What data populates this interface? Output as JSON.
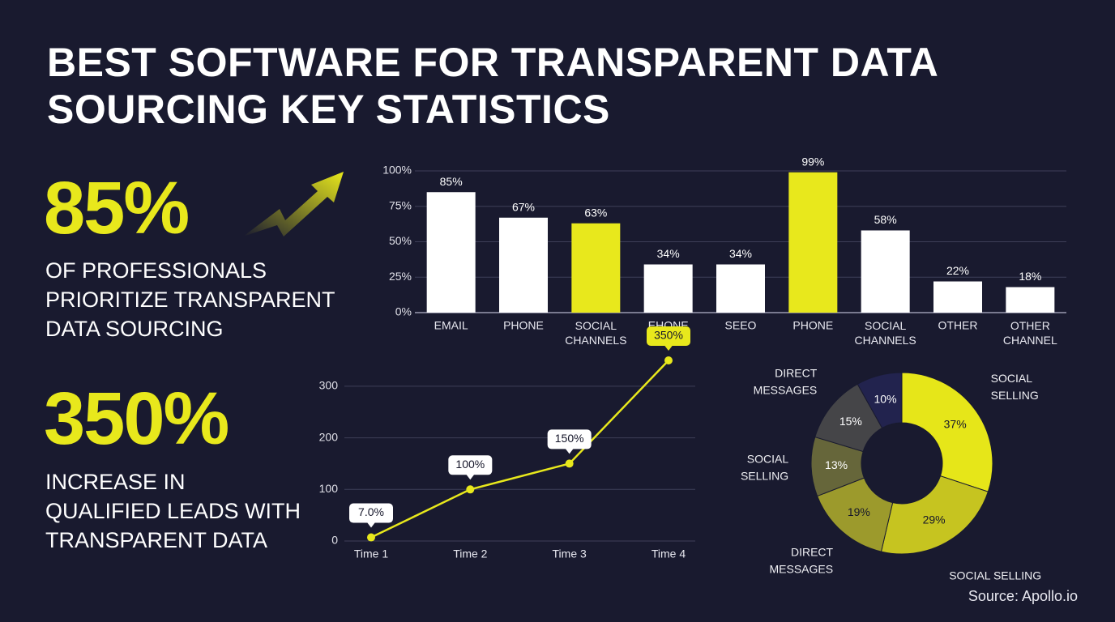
{
  "header": {
    "title": "BEST SOFTWARE FOR TRANSPARENT DATA\nSOURCING KEY STATISTICS"
  },
  "stats": [
    {
      "value": "85%",
      "text": "OF PROFESSIONALS\nPRIORITIZE TRANSPARENT\nDATA SOURCING"
    },
    {
      "value": "350%",
      "text": "INCREASE IN\nQUALIFIED LEADS WITH\nTRANSPARENT DATA"
    }
  ],
  "source": "Source: Apollo.io",
  "chart_data": [
    {
      "type": "bar",
      "categories": [
        "EMAIL",
        "PHONE",
        "SOCIAL\nCHANNELS",
        "EHONE",
        "SEEO",
        "PHONE",
        "SOCIAL\nCHANNELS",
        "OTHER",
        "OTHER\nCHANNEL"
      ],
      "values": [
        85,
        67,
        63,
        34,
        34,
        99,
        58,
        22,
        18
      ],
      "value_labels": [
        "85%",
        "67%",
        "63%",
        "34%",
        "34%",
        "99%",
        "58%",
        "22%",
        "18%"
      ],
      "colors": [
        "#ffffff",
        "#ffffff",
        "#e8e81c",
        "#ffffff",
        "#ffffff",
        "#e8e81c",
        "#ffffff",
        "#ffffff",
        "#ffffff"
      ],
      "ylim": [
        0,
        100
      ],
      "yticks": [
        {
          "value": 0,
          "label": "0%"
        },
        {
          "value": 25,
          "label": "25%"
        },
        {
          "value": 50,
          "label": "50%"
        },
        {
          "value": 75,
          "label": "75%"
        },
        {
          "value": 100,
          "label": "100%"
        }
      ],
      "grid": true
    },
    {
      "type": "line",
      "categories": [
        "Time 1",
        "Time 2",
        "Time 3",
        "Time 4"
      ],
      "values": [
        7,
        100,
        150,
        350
      ],
      "value_labels": [
        "7.0%",
        "100%",
        "150%",
        "350%"
      ],
      "color": "#e8e81c",
      "ylim": [
        0,
        350
      ],
      "yticks": [
        0,
        100,
        200,
        300
      ],
      "grid": true
    },
    {
      "type": "pie",
      "categories": [
        "SOCIAL\nSELLING",
        "SOCIAL SELLING",
        "DIRECT\nMESSAGES",
        "SOCIAL\nSELLING",
        "DIRECT\nMESSAGES",
        null
      ],
      "values": [
        37,
        29,
        19,
        13,
        15,
        10
      ],
      "value_labels": [
        "37%",
        "29%",
        "19%",
        "13%",
        "15%",
        "10%"
      ],
      "colors": [
        "#e6e619",
        "#c6c420",
        "#9c9a2c",
        "#66663a",
        "#454548",
        "#22234e"
      ]
    }
  ]
}
